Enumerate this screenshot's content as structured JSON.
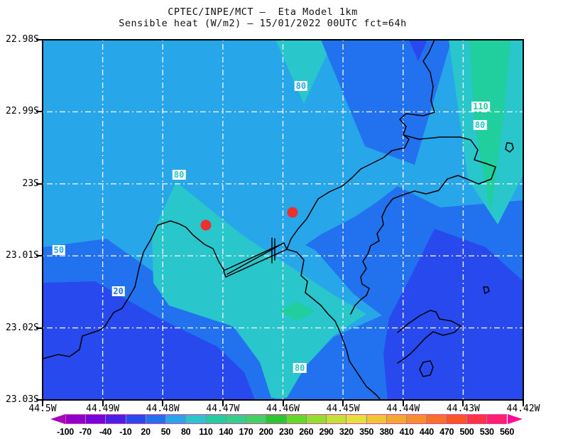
{
  "title": {
    "line1": "CPTEC/INPE/MCT —  Eta Model 1km",
    "line2": "Sensible heat (W/m2) — 15/01/2022 00UTC fct=64h"
  },
  "colors": {
    "band_minus10_20": "#2849EE",
    "band_20_50": "#2272EF",
    "band_50_80": "#27A7EA",
    "band_80_110": "#29C6CB",
    "band_110_140": "#20CE9E",
    "coastline": "#000000",
    "gridline": "#EFEFEF",
    "frame": "#000000",
    "title_text": "#111111",
    "station_marker": "#EC2F2F",
    "colorbar_outline": "#E23FA8"
  },
  "chart_data": {
    "type": "heatmap",
    "subtype": "filled_contour_map",
    "title": "CPTEC/INPE/MCT —  Eta Model 1km",
    "subtitle": "Sensible heat (W/m2) — 15/01/2022 00UTC fct=64h",
    "center": "CPTEC/INPE/MCT",
    "model": "Eta Model 1km",
    "variable": "Sensible heat",
    "units": "W/m2",
    "run": "15/01/2022 00UTC",
    "forecast": "fct=64h",
    "grid_on": true,
    "lon_range": [
      -44.5,
      -44.42
    ],
    "lat_range": [
      -23.03,
      -22.98
    ],
    "x_axis": {
      "tick_labels": [
        "44.5W",
        "44.49W",
        "44.48W",
        "44.47W",
        "44.46W",
        "44.45W",
        "44.44W",
        "44.43W",
        "44.42W"
      ],
      "tick_values": [
        -44.5,
        -44.49,
        -44.48,
        -44.47,
        -44.46,
        -44.45,
        -44.44,
        -44.43,
        -44.42
      ]
    },
    "y_axis": {
      "tick_labels": [
        "22.98S",
        "22.99S",
        "23S",
        "23.01S",
        "23.02S",
        "23.03S"
      ],
      "tick_values": [
        -22.98,
        -22.99,
        -23.0,
        -23.01,
        -23.02,
        -23.03
      ]
    },
    "contour_interval": 30,
    "visible_value_bands": [
      {
        "range": "-10 to 20",
        "color": "#2849EE"
      },
      {
        "range": "20 to 50",
        "color": "#2272EF"
      },
      {
        "range": "50 to 80",
        "color": "#27A7EA"
      },
      {
        "range": "80 to 110",
        "color": "#29C6CB"
      },
      {
        "range": "110 to 140",
        "color": "#20CE9E"
      }
    ],
    "contour_labels": [
      {
        "text": "80",
        "lon": -44.457,
        "lat": -22.9864,
        "color": "#27A7EA"
      },
      {
        "text": "110",
        "lon": -44.4271,
        "lat": -22.9893,
        "color": "#20CE9E"
      },
      {
        "text": "80",
        "lon": -44.4272,
        "lat": -22.9918,
        "color": "#29C6CB"
      },
      {
        "text": "80",
        "lon": -44.4773,
        "lat": -22.9987,
        "color": "#29C6CB"
      },
      {
        "text": "50",
        "lon": -44.4973,
        "lat": -23.0092,
        "color": "#27A7EA"
      },
      {
        "text": "20",
        "lon": -44.4874,
        "lat": -23.0149,
        "color": "#2272EF"
      },
      {
        "text": "80",
        "lon": -44.4572,
        "lat": -23.0256,
        "color": "#29C6CB"
      }
    ],
    "station_markers": [
      {
        "lon": -44.4728,
        "lat": -23.0057,
        "color": "#EC2F2F"
      },
      {
        "lon": -44.4584,
        "lat": -23.004,
        "color": "#EC2F2F"
      }
    ],
    "colorbar": {
      "tick_labels": [
        "-100",
        "-70",
        "-40",
        "-10",
        "20",
        "50",
        "80",
        "110",
        "140",
        "170",
        "200",
        "230",
        "260",
        "290",
        "320",
        "350",
        "380",
        "410",
        "440",
        "470",
        "500",
        "530",
        "560"
      ],
      "tick_values": [
        -100,
        -70,
        -40,
        -10,
        20,
        50,
        80,
        110,
        140,
        170,
        200,
        230,
        260,
        290,
        320,
        350,
        380,
        410,
        440,
        470,
        500,
        530,
        560
      ],
      "segment_colors": [
        "#8E00C9",
        "#7403DC",
        "#4A1FE6",
        "#2849EE",
        "#2272EF",
        "#27A7EA",
        "#29C6CB",
        "#20CE9E",
        "#32D189",
        "#42D163",
        "#2BC72E",
        "#5FDA26",
        "#94DF2D",
        "#C2E335",
        "#E4E23A",
        "#EEC636",
        "#F2A930",
        "#F58E2C",
        "#F77128",
        "#F95424",
        "#FB3342",
        "#FD1F70"
      ],
      "left_arrow_color": "#A700BA",
      "right_arrow_color": "#FA0B95",
      "legend_position": "bottom"
    }
  }
}
